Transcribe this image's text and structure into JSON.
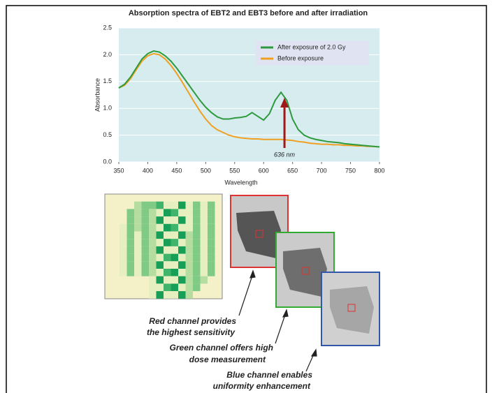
{
  "chart_data": {
    "type": "line",
    "title": "Absorption spectra of EBT2 and EBT3 before and after irradiation",
    "x_label": "Wavelength",
    "y_label": "Absorbance",
    "x": [
      350,
      360,
      370,
      380,
      390,
      400,
      410,
      420,
      430,
      440,
      450,
      460,
      470,
      480,
      490,
      500,
      510,
      520,
      530,
      540,
      550,
      560,
      570,
      580,
      590,
      600,
      610,
      620,
      630,
      640,
      650,
      660,
      670,
      680,
      690,
      700,
      710,
      720,
      730,
      740,
      750,
      760,
      770,
      780,
      790,
      800
    ],
    "series": [
      {
        "name": "After exposure of 2.0 Gy",
        "color": "#2e9a3e",
        "values": [
          1.38,
          1.45,
          1.58,
          1.75,
          1.92,
          2.02,
          2.07,
          2.05,
          1.98,
          1.88,
          1.75,
          1.6,
          1.45,
          1.3,
          1.15,
          1.02,
          0.92,
          0.84,
          0.8,
          0.8,
          0.82,
          0.83,
          0.85,
          0.92,
          0.85,
          0.78,
          0.9,
          1.15,
          1.3,
          1.15,
          0.8,
          0.6,
          0.5,
          0.45,
          0.42,
          0.4,
          0.38,
          0.37,
          0.36,
          0.34,
          0.33,
          0.32,
          0.31,
          0.3,
          0.29,
          0.28
        ]
      },
      {
        "name": "Before exposure",
        "color": "#f0a020",
        "values": [
          1.38,
          1.43,
          1.55,
          1.72,
          1.88,
          1.98,
          2.02,
          2.0,
          1.92,
          1.8,
          1.65,
          1.48,
          1.3,
          1.12,
          0.95,
          0.8,
          0.68,
          0.6,
          0.55,
          0.5,
          0.47,
          0.45,
          0.44,
          0.43,
          0.43,
          0.42,
          0.42,
          0.42,
          0.42,
          0.41,
          0.4,
          0.38,
          0.37,
          0.35,
          0.34,
          0.33,
          0.33,
          0.32,
          0.32,
          0.31,
          0.31,
          0.3,
          0.3,
          0.29,
          0.29,
          0.28
        ]
      }
    ],
    "xlim": [
      350,
      800
    ],
    "xticks": [
      350,
      400,
      450,
      500,
      550,
      600,
      650,
      700,
      750,
      800
    ],
    "ylim": [
      0,
      2.5
    ],
    "yticks": [
      {
        "value": 0,
        "label": "0.0"
      },
      0.5,
      {
        "value": 1,
        "label": "1.0"
      },
      1.5,
      {
        "value": 2,
        "label": "2.0"
      },
      2.5
    ],
    "grid": true,
    "legend": "upper right",
    "annotations": [
      {
        "text": "636 nm",
        "x": 636
      }
    ]
  },
  "figure": {
    "captions": [
      "Red channel provides",
      "the highest sensitivity",
      "Green channel offers high",
      "dose measurement",
      "Blue channel enables",
      "uniformity enhancement"
    ]
  }
}
